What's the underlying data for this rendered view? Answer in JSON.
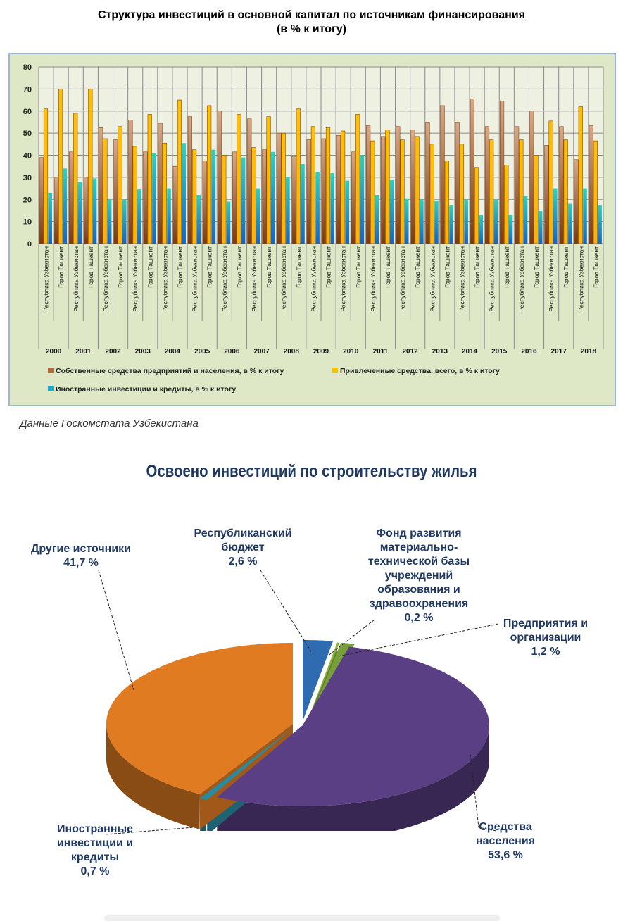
{
  "chart_data": [
    {
      "type": "bar",
      "title": "Структура инвестиций в основной капитал по источникам финансирования",
      "subtitle": "(в % к итогу)",
      "ylim": [
        0,
        80
      ],
      "yticks": [
        0,
        10,
        20,
        30,
        40,
        50,
        60,
        70,
        80
      ],
      "grid": true,
      "legend_position": "bottom",
      "years": [
        "2000",
        "2001",
        "2002",
        "2003",
        "2004",
        "2005",
        "2006",
        "2007",
        "2008",
        "2009",
        "2010",
        "2011",
        "2012",
        "2013",
        "2014",
        "2015",
        "2016",
        "2017",
        "2018"
      ],
      "subcategories": [
        "Республика Узбекистан",
        "Город Ташкент"
      ],
      "series": [
        {
          "name": "Собственные средства предприятий и населения, в % к итогу",
          "color": "#b5693a",
          "values": [
            39,
            30,
            41.5,
            30,
            52.5,
            47,
            56,
            41.5,
            54.5,
            35,
            57.5,
            37.5,
            60,
            41.5,
            56.5,
            42.5,
            50,
            39.5,
            47,
            47.5,
            49,
            41.5,
            53.5,
            48.5,
            53,
            51.5,
            55,
            62.5,
            55,
            65.5,
            53,
            64.5,
            53,
            60,
            44.5,
            53,
            38,
            53.5
          ]
        },
        {
          "name": "Привлеченные средства, всего, в % к итогу",
          "color": "#ffc000",
          "values": [
            61,
            70,
            59,
            70,
            47.5,
            53,
            44,
            58.5,
            45.5,
            65,
            42.5,
            62.5,
            40,
            58.5,
            43.5,
            57.5,
            50,
            61,
            53,
            52.5,
            51,
            58.5,
            46.5,
            51.5,
            47,
            48.5,
            45,
            37.5,
            45,
            34.5,
            47,
            35.5,
            47,
            40,
            55.5,
            47,
            62,
            46.5
          ]
        },
        {
          "name": "Иностранные инвестиции  и кредиты, в % к итогу",
          "color": "#1fa7c9",
          "values": [
            23,
            34,
            28,
            29.5,
            20,
            20,
            24.5,
            41,
            25,
            45.5,
            22,
            42.5,
            19,
            39,
            25,
            41.5,
            30,
            36,
            32.5,
            32,
            28.5,
            40,
            22,
            29,
            20.5,
            20,
            19.5,
            17.5,
            20,
            13,
            20,
            13,
            21.5,
            15,
            25,
            18,
            25,
            17.5
          ]
        }
      ]
    },
    {
      "type": "pie",
      "title": "Освоено инвестиций по строительству жилья",
      "slices": [
        {
          "label_lines": [
            "Республиканский",
            "бюджет"
          ],
          "value_label": "2,6 %",
          "value": 2.6,
          "color": "#2e6bb0"
        },
        {
          "label_lines": [
            "Фонд развития",
            "материально-",
            "технической базы",
            "учреждений",
            "образования и",
            "здравоохранения"
          ],
          "value_label": "0,2 %",
          "value": 0.2,
          "color": "#8fb33f"
        },
        {
          "label_lines": [
            "Предприятия и",
            "организации"
          ],
          "value_label": "1,2 %",
          "value": 1.2,
          "color": "#77a03a"
        },
        {
          "label_lines": [
            "Средства",
            "населения"
          ],
          "value_label": "53,6 %",
          "value": 53.6,
          "color": "#5b3f85"
        },
        {
          "label_lines": [
            "Иностранные",
            "инвестиции и",
            "кредиты"
          ],
          "value_label": "0,7 %",
          "value": 0.7,
          "color": "#2a8aa0"
        },
        {
          "label_lines": [
            "Другие источники"
          ],
          "value_label": "41,7 %",
          "value": 41.7,
          "color": "#e07b22"
        }
      ]
    }
  ],
  "source_note": "Данные Госкомстата Узбекистана"
}
